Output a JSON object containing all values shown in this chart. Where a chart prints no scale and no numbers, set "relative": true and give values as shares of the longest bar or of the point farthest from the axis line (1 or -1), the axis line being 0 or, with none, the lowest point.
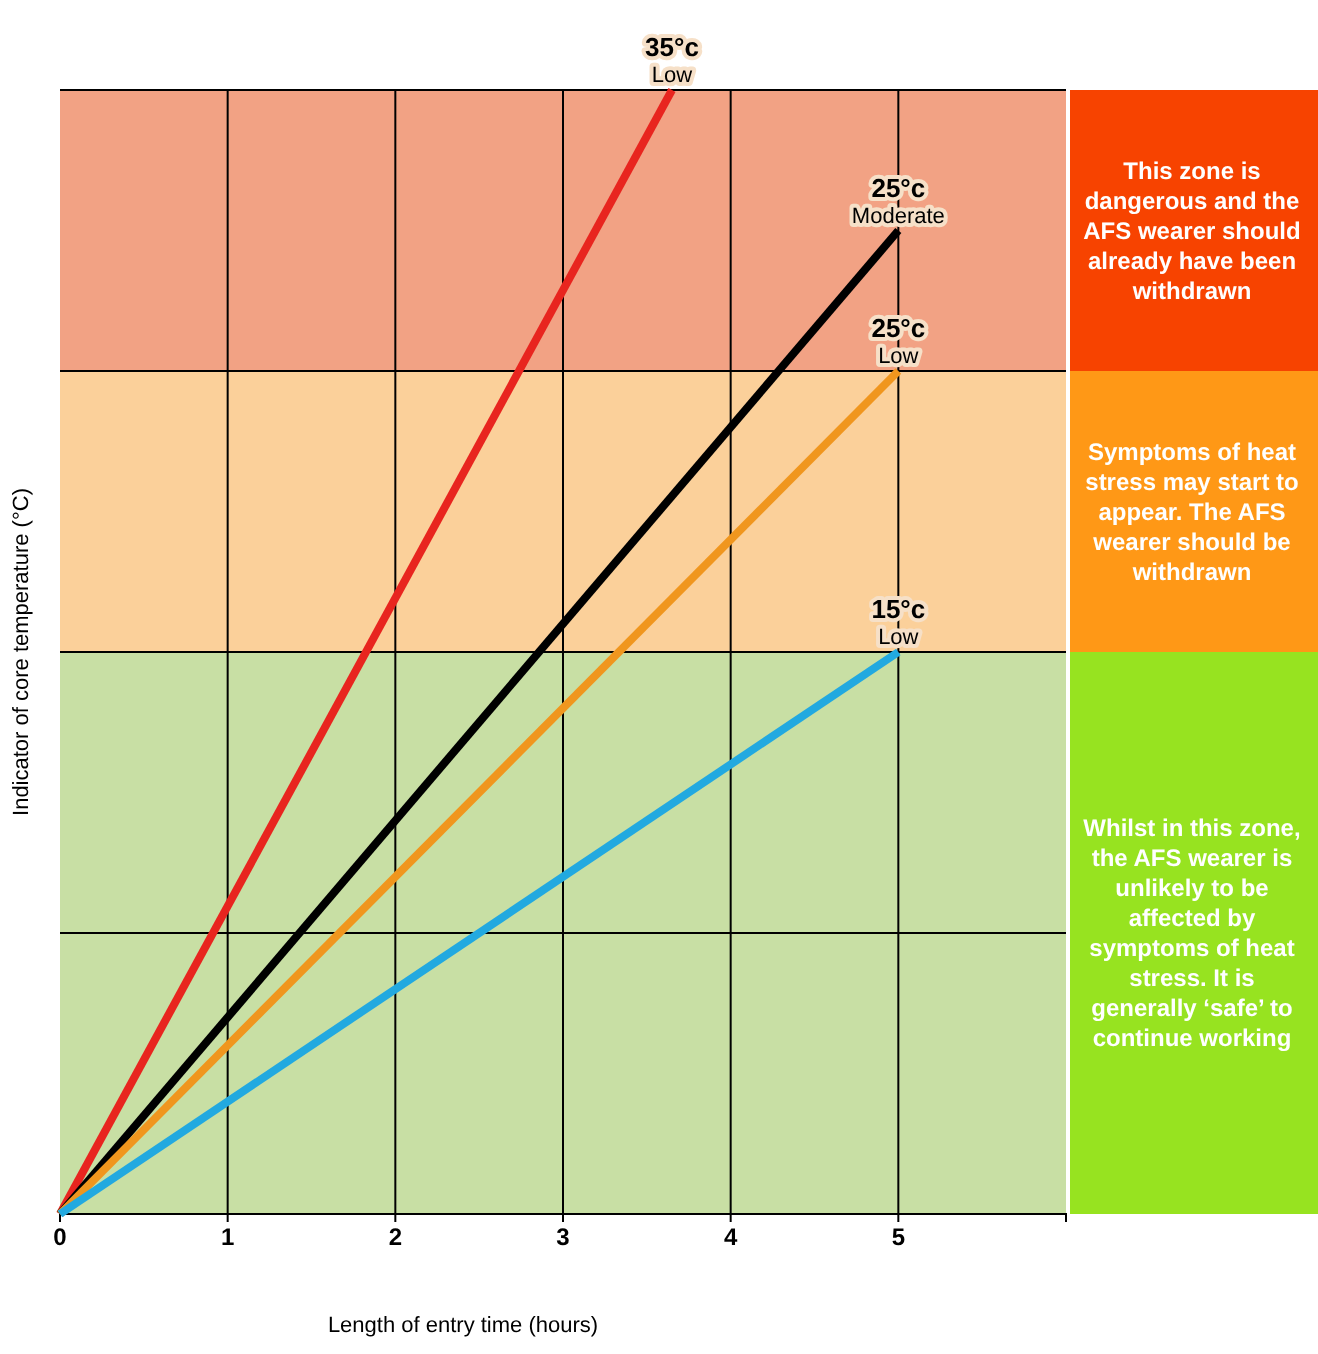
{
  "chart_data": {
    "type": "line",
    "relative": true,
    "xlabel": "Length of entry time (hours)",
    "ylabel": "Indicator of core temperature (°C)",
    "xlim": [
      0,
      6
    ],
    "xticks": [
      0,
      1,
      2,
      3,
      4,
      5
    ],
    "grid": "x",
    "marker": "none",
    "line_style": "solid",
    "series": [
      {
        "name": "35°c Low",
        "color": "#e8251f",
        "x": [
          0,
          3.65
        ],
        "values": [
          0,
          1
        ]
      },
      {
        "name": "25°c Moderate",
        "color": "#000000",
        "x": [
          0,
          5
        ],
        "values": [
          0,
          0.875
        ]
      },
      {
        "name": "25°c Low",
        "color": "#f0961e",
        "x": [
          0,
          5
        ],
        "values": [
          0,
          0.75
        ]
      },
      {
        "name": "15°c Low",
        "color": "#22a9e0",
        "x": [
          0,
          5
        ],
        "values": [
          0,
          0.5
        ]
      }
    ],
    "bands": [
      {
        "axis": "y",
        "from": 0.75,
        "to": 1,
        "color": "#f2a284",
        "label": "This zone is dangerous and the AFS wearer should already have been withdrawn"
      },
      {
        "axis": "y",
        "from": 0.5,
        "to": 0.75,
        "color": "#fbd09a",
        "label": "Symptoms of heat stress may start to appear. The AFS wearer should be withdrawn"
      },
      {
        "axis": "y",
        "from": 0,
        "to": 0.5,
        "color": "#c8dfa4",
        "label": "Whilst in this zone, the AFS wearer is unlikely to be affected by symptoms of heat stress. It is generally ‘safe’ to continue working"
      }
    ],
    "ref_lines": [
      {
        "axis": "y",
        "value": 0.25,
        "color": "#000000"
      }
    ]
  }
}
